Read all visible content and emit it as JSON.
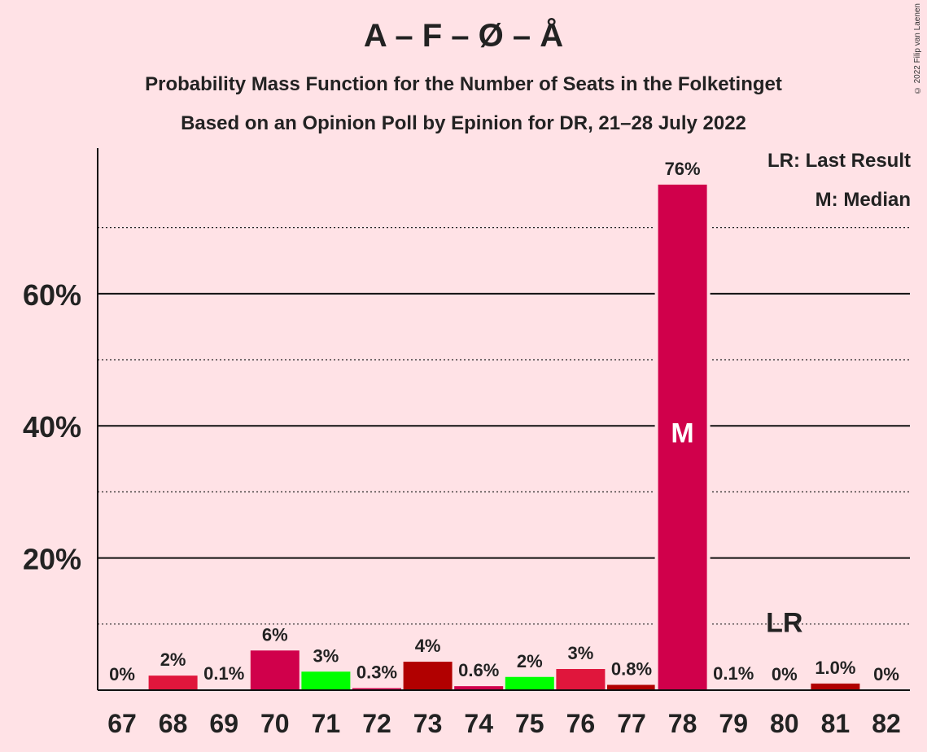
{
  "title": "A – F – Ø – Å",
  "subtitle": "Probability Mass Function for the Number of Seats in the Folketinget",
  "subtitle2": "Based on an Opinion Poll by Epinion for DR, 21–28 July 2022",
  "copyright": "© 2022 Filip van Laenen",
  "legend": {
    "last_result": "LR: Last Result",
    "median": "M: Median"
  },
  "markers": {
    "median_label": "M",
    "last_result_label": "LR"
  },
  "colors": {
    "background": "#ffe2e6",
    "crimson": "#d0004b",
    "red": "#e0163c",
    "green": "#00ff00",
    "darkred": "#b10000"
  },
  "chart_data": {
    "type": "bar",
    "categories": [
      "67",
      "68",
      "69",
      "70",
      "71",
      "72",
      "73",
      "74",
      "75",
      "76",
      "77",
      "78",
      "79",
      "80",
      "81",
      "82"
    ],
    "values": [
      0,
      2.2,
      0.1,
      6,
      2.8,
      0.3,
      4.3,
      0.6,
      2.0,
      3.2,
      0.8,
      76.5,
      0.1,
      0,
      1.0,
      0
    ],
    "labels": [
      "0%",
      "2%",
      "0.1%",
      "6%",
      "3%",
      "0.3%",
      "4%",
      "0.6%",
      "2%",
      "3%",
      "0.8%",
      "76%",
      "0.1%",
      "0%",
      "1.0%",
      "0%"
    ],
    "bar_colors": [
      "#e0163c",
      "#e0163c",
      "#e0163c",
      "#d0004b",
      "#00ff00",
      "#d0004b",
      "#b10000",
      "#d0004b",
      "#00ff00",
      "#e0163c",
      "#b10000",
      "#d0004b",
      "#e0163c",
      "#e0163c",
      "#b10000",
      "#e0163c"
    ],
    "y_tick_labels": [
      "20%",
      "40%",
      "60%"
    ],
    "y_ticks": [
      20,
      40,
      60
    ],
    "minor_gridlines": [
      10,
      30,
      50,
      70
    ],
    "ylim": [
      0,
      83.5
    ],
    "median_category": "78",
    "last_result_category": "80",
    "grid": true,
    "legend_position": "top-right"
  }
}
